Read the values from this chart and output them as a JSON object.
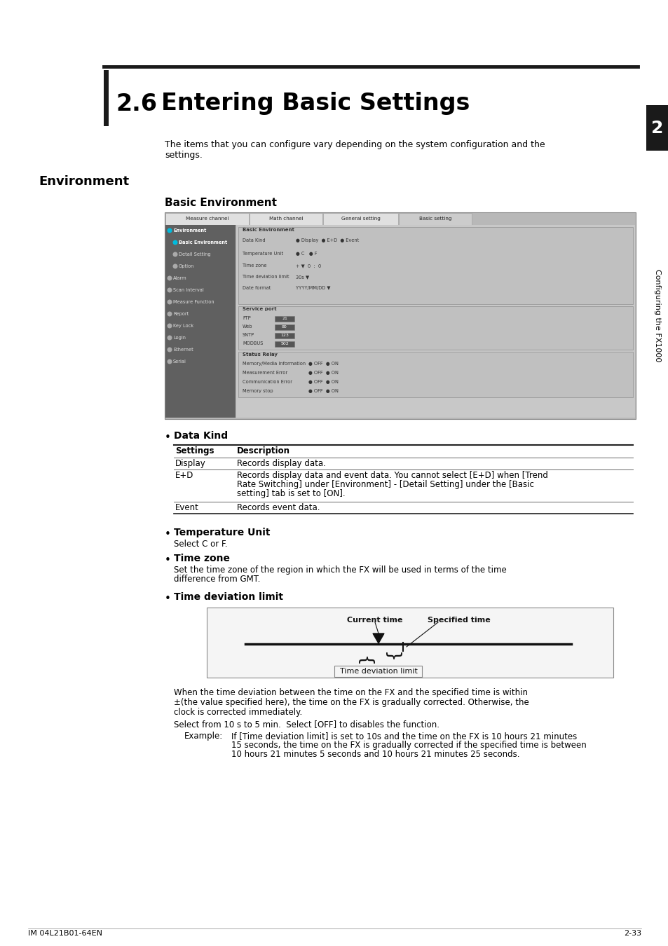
{
  "title_number": "2.6",
  "title_text": "Entering Basic Settings",
  "section_label": "Environment",
  "subsection_label": "Basic Environment",
  "intro_text_line1": "The items that you can configure vary depending on the system configuration and the",
  "intro_text_line2": "settings.",
  "sidebar_number": "2",
  "sidebar_text": "Configuring the FX1000",
  "bullet_data_kind_header": "Data Kind",
  "table_headers": [
    "Settings",
    "Description"
  ],
  "table_rows": [
    [
      "Display",
      "Records display data."
    ],
    [
      "E+D",
      "Records display data and event data. You cannot select [E+D] when [Trend\nRate Switching] under [Environment] - [Detail Setting] under the [Basic\nsetting] tab is set to [ON]."
    ],
    [
      "Event",
      "Records event data."
    ]
  ],
  "bullet_temp_unit_header": "Temperature Unit",
  "bullet_temp_unit_text": "Select C or F.",
  "bullet_time_zone_header": "Time zone",
  "bullet_time_zone_text_line1": "Set the time zone of the region in which the FX will be used in terms of the time",
  "bullet_time_zone_text_line2": "difference from GMT.",
  "bullet_time_dev_header": "Time deviation limit",
  "time_dev_diagram": {
    "current_time_label": "Current time",
    "specified_time_label": "Specified time",
    "box_label": "Time deviation limit"
  },
  "para_after_diagram_lines": [
    "When the time deviation between the time on the FX and the specified time is within",
    "±(the value specified here), the time on the FX is gradually corrected. Otherwise, the",
    "clock is corrected immediately."
  ],
  "para_select": "Select from 10 s to 5 min.  Select [OFF] to disables the function.",
  "para_example_label": "Example:",
  "para_example_text1": "If [Time deviation limit] is set to 10s and the time on the FX is 10 hours 21 minutes",
  "para_example_text2": "15 seconds, the time on the FX is gradually corrected if the specified time is between",
  "para_example_text3": "10 hours 21 minutes 5 seconds and 10 hours 21 minutes 25 seconds.",
  "footer_left": "IM 04L21B01-64EN",
  "footer_right": "2-33",
  "bg_color": "#ffffff",
  "text_color": "#000000",
  "sidebar_num_bg": "#1a1a1a",
  "sidebar_text_color": "#000000",
  "header_bar_color": "#1a1a1a",
  "left_bar_color": "#1a1a1a"
}
